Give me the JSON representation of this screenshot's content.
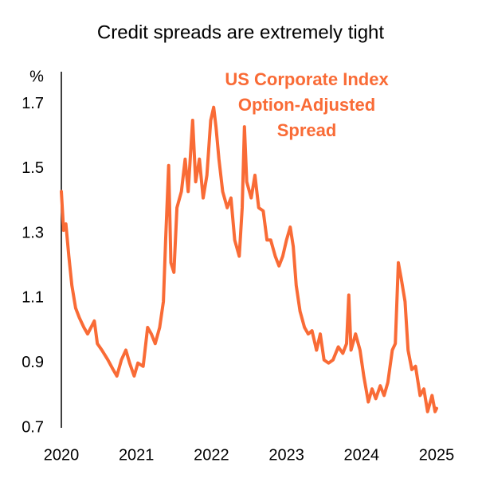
{
  "chart_data": {
    "type": "line",
    "title": "Credit spreads are extremely tight",
    "y_label": "%",
    "xlim": [
      2020,
      2025
    ],
    "xticks": [
      2020,
      2021,
      2022,
      2023,
      2024,
      2025
    ],
    "ylim": [
      0.7,
      1.8
    ],
    "yticks": [
      0.7,
      0.9,
      1.1,
      1.3,
      1.5,
      1.7
    ],
    "grid": false,
    "x": [
      2020.0,
      2020.03,
      2020.06,
      2020.1,
      2020.14,
      2020.19,
      2020.24,
      2020.3,
      2020.35,
      2020.44,
      2020.48,
      2020.54,
      2020.62,
      2020.69,
      2020.74,
      2020.8,
      2020.86,
      2020.91,
      2020.97,
      2021.02,
      2021.09,
      2021.15,
      2021.2,
      2021.25,
      2021.31,
      2021.36,
      2021.39,
      2021.43,
      2021.46,
      2021.5,
      2021.54,
      2021.6,
      2021.65,
      2021.69,
      2021.75,
      2021.79,
      2021.84,
      2021.89,
      2021.94,
      2021.99,
      2022.03,
      2022.06,
      2022.1,
      2022.15,
      2022.21,
      2022.26,
      2022.31,
      2022.37,
      2022.41,
      2022.44,
      2022.47,
      2022.53,
      2022.58,
      2022.63,
      2022.69,
      2022.74,
      2022.79,
      2022.85,
      2022.9,
      2022.95,
      2023.0,
      2023.05,
      2023.09,
      2023.13,
      2023.18,
      2023.24,
      2023.29,
      2023.34,
      2023.4,
      2023.45,
      2023.5,
      2023.56,
      2023.62,
      2023.69,
      2023.75,
      2023.8,
      2023.83,
      2023.86,
      2023.92,
      2023.98,
      2024.03,
      2024.09,
      2024.14,
      2024.19,
      2024.25,
      2024.3,
      2024.35,
      2024.41,
      2024.45,
      2024.49,
      2024.53,
      2024.58,
      2024.62,
      2024.67,
      2024.72,
      2024.78,
      2024.83,
      2024.88,
      2024.94,
      2024.98,
      2025.0
    ],
    "series": [
      {
        "name": "US Corporate Index Option-Adjusted Spread",
        "color": "#f96b36",
        "values": [
          1.43,
          1.31,
          1.33,
          1.23,
          1.14,
          1.07,
          1.04,
          1.01,
          0.99,
          1.03,
          0.96,
          0.94,
          0.91,
          0.88,
          0.86,
          0.91,
          0.94,
          0.9,
          0.86,
          0.9,
          0.89,
          1.01,
          0.99,
          0.96,
          1.01,
          1.09,
          1.28,
          1.51,
          1.21,
          1.18,
          1.38,
          1.43,
          1.53,
          1.43,
          1.65,
          1.46,
          1.53,
          1.41,
          1.48,
          1.65,
          1.69,
          1.63,
          1.53,
          1.43,
          1.38,
          1.41,
          1.28,
          1.23,
          1.38,
          1.63,
          1.46,
          1.41,
          1.48,
          1.38,
          1.37,
          1.28,
          1.28,
          1.23,
          1.2,
          1.23,
          1.28,
          1.32,
          1.26,
          1.14,
          1.06,
          1.01,
          0.99,
          1.0,
          0.94,
          0.99,
          0.91,
          0.9,
          0.91,
          0.95,
          0.93,
          0.96,
          1.11,
          0.94,
          0.99,
          0.94,
          0.86,
          0.78,
          0.82,
          0.79,
          0.83,
          0.8,
          0.84,
          0.94,
          0.96,
          1.21,
          1.16,
          1.09,
          0.94,
          0.88,
          0.89,
          0.8,
          0.82,
          0.75,
          0.8,
          0.75,
          0.76
        ]
      }
    ]
  }
}
